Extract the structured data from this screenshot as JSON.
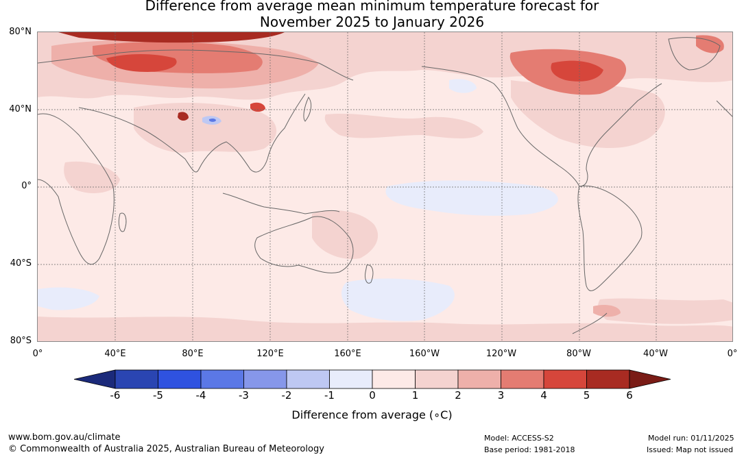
{
  "title": {
    "line1": "Difference from average mean minimum temperature forecast for",
    "line2": "November 2025 to January 2026"
  },
  "map": {
    "lat_labels": [
      "80°N",
      "40°N",
      "0°",
      "40°S",
      "80°S"
    ],
    "lon_labels": [
      "0°",
      "40°E",
      "80°E",
      "120°E",
      "160°E",
      "160°W",
      "120°W",
      "80°W",
      "40°W",
      "0°"
    ],
    "background_color": "#fdeae7",
    "coastline_color": "#666666",
    "gridline_color": "#666666"
  },
  "colorbar": {
    "ticks": [
      "-6",
      "-5",
      "-4",
      "-3",
      "-2",
      "-1",
      "0",
      "1",
      "2",
      "3",
      "4",
      "5",
      "6"
    ],
    "label": "Difference from average (∘C)",
    "colors": [
      "#1b2a7a",
      "#2a45b2",
      "#2f52e0",
      "#5b78e6",
      "#8697ea",
      "#bec8f3",
      "#e8ecfb",
      "#fdeae7",
      "#f4d3d0",
      "#eeb0aa",
      "#e47c72",
      "#d6463b",
      "#a82b22",
      "#7a1c16"
    ]
  },
  "footer": {
    "website": "www.bom.gov.au/climate",
    "copyright": "© Commonwealth of Australia 2025, Australian Bureau of Meteorology",
    "model": "Model: ACCESS-S2",
    "base_period": "Base period: 1981-2018",
    "model_run": "Model run: 01/11/2025",
    "issued": "Issued: Map not issued"
  }
}
